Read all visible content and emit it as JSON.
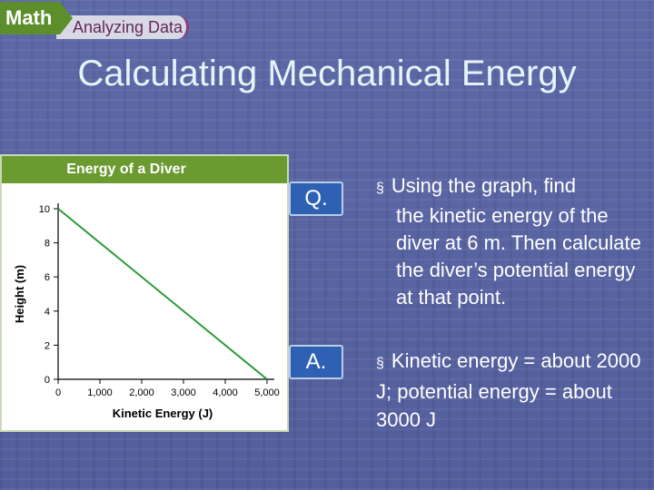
{
  "banner": {
    "subject": "Math",
    "section": "Analyzing Data"
  },
  "title": "Calculating Mechanical Energy",
  "badges": {
    "question": "Q.",
    "answer": "A."
  },
  "question": {
    "bullet": "§",
    "text_line1": "Using the graph, find",
    "text_rest": "the kinetic energy of the diver at 6 m. Then calculate the diver’s potential energy at that point."
  },
  "answer": {
    "bullet": "§",
    "text": "Kinetic energy = about 2000 J; potential energy = about 3000 J"
  },
  "colors": {
    "header_green": "#6a9a30",
    "line_green": "#2e9a36",
    "badge_blue": "#2e61b3"
  },
  "chart_data": {
    "type": "line",
    "title": "Energy of a Diver",
    "xlabel": "Kinetic Energy (J)",
    "ylabel": "Height (m)",
    "xlim": [
      0,
      5000
    ],
    "ylim": [
      0,
      10
    ],
    "x_ticks": [
      0,
      1000,
      2000,
      3000,
      4000,
      5000
    ],
    "x_tick_labels": [
      "0",
      "1,000",
      "2,000",
      "3,000",
      "4,000",
      "5,000"
    ],
    "y_ticks": [
      0,
      2,
      4,
      6,
      8,
      10
    ],
    "y_tick_labels": [
      "0",
      "2",
      "4",
      "6",
      "8",
      "10"
    ],
    "grid": false,
    "series": [
      {
        "points": [
          [
            0,
            10
          ],
          [
            5000,
            0
          ]
        ]
      }
    ]
  }
}
